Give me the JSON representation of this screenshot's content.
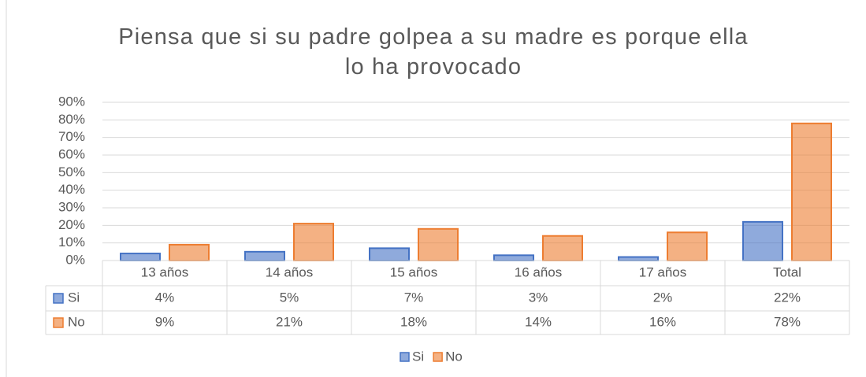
{
  "chart_data": {
    "type": "bar",
    "title": "Piensa que si su padre golpea a su madre es porque ella lo ha provocado",
    "categories": [
      "13 años",
      "14 años",
      "15 años",
      "16 años",
      "17 años",
      "Total"
    ],
    "series": [
      {
        "name": "Si",
        "color": "#4472c4",
        "values": [
          4,
          5,
          7,
          3,
          2,
          22
        ],
        "value_labels": [
          "4%",
          "5%",
          "7%",
          "3%",
          "2%",
          "22%"
        ]
      },
      {
        "name": "No",
        "color": "#ed7d31",
        "values": [
          9,
          21,
          18,
          14,
          16,
          78
        ],
        "value_labels": [
          "9%",
          "21%",
          "18%",
          "14%",
          "16%",
          "78%"
        ]
      }
    ],
    "ylim": [
      0,
      90
    ],
    "yticks": [
      {
        "value": 0,
        "label": "0%"
      },
      {
        "value": 10,
        "label": "10%"
      },
      {
        "value": 20,
        "label": "20%"
      },
      {
        "value": 30,
        "label": "30%"
      },
      {
        "value": 40,
        "label": "40%"
      },
      {
        "value": 50,
        "label": "50%"
      },
      {
        "value": 60,
        "label": "60%"
      },
      {
        "value": 70,
        "label": "70%"
      },
      {
        "value": 80,
        "label": "80%"
      },
      {
        "value": 90,
        "label": "90%"
      }
    ],
    "grid": true,
    "legend": "bottom"
  }
}
